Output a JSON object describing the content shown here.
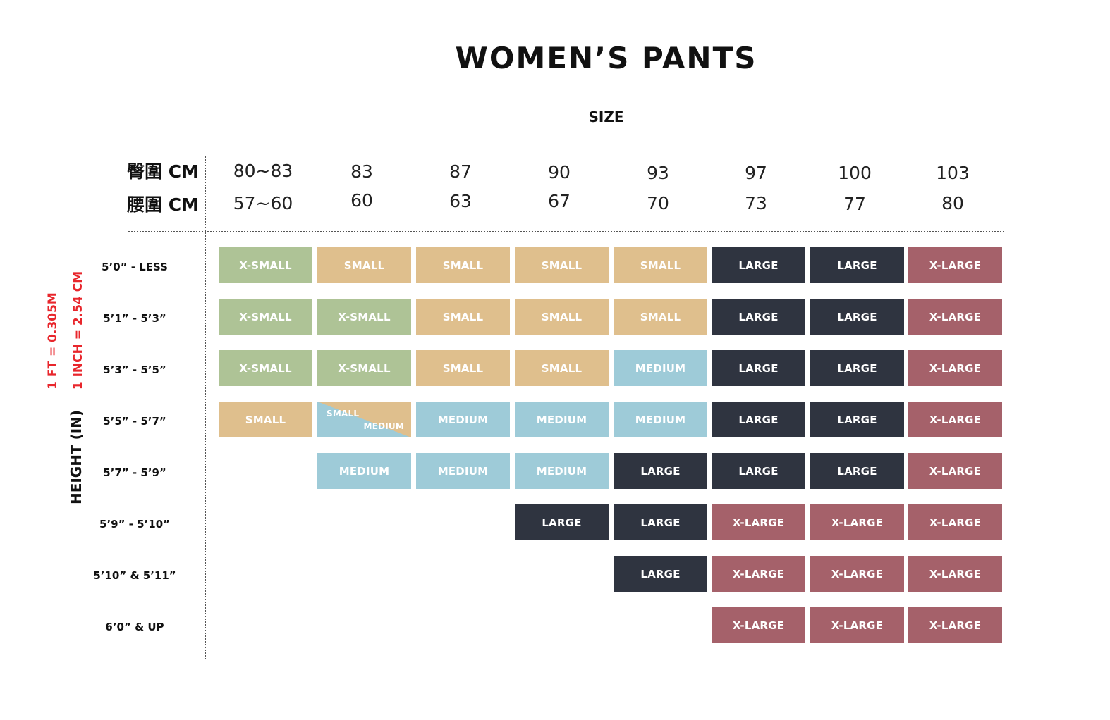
{
  "title": "WOMEN’S PANTS",
  "subtitle": "SIZE",
  "hip_label": "臀圍 CM",
  "waist_label": "腰圍 CM",
  "hip_values": [
    "80~83",
    "83",
    "87",
    "90",
    "93",
    "97",
    "100",
    "103"
  ],
  "waist_values": [
    "57~60",
    "60",
    "63",
    "67",
    "70",
    "73",
    "77",
    "80"
  ],
  "axis_label": "HEIGHT (IN)",
  "conversion_ft": "1 FT = 0.305M",
  "conversion_inch": "1 INCH = 2.54 CM",
  "colors": {
    "X-SMALL": "#aec396",
    "SMALL": "#dfbf8d",
    "MEDIUM": "#9ecbd8",
    "LARGE": "#2f3440",
    "X-LARGE": "#a5616a",
    "conversion_text": "#e8262c"
  },
  "rows": [
    {
      "height": "5’0” - LESS",
      "cells": [
        "X-SMALL",
        "SMALL",
        "SMALL",
        "SMALL",
        "SMALL",
        "LARGE",
        "LARGE",
        "X-LARGE"
      ]
    },
    {
      "height": "5’1” - 5’3”",
      "cells": [
        "X-SMALL",
        "X-SMALL",
        "SMALL",
        "SMALL",
        "SMALL",
        "LARGE",
        "LARGE",
        "X-LARGE"
      ]
    },
    {
      "height": "5’3” - 5’5”",
      "cells": [
        "X-SMALL",
        "X-SMALL",
        "SMALL",
        "SMALL",
        "MEDIUM",
        "LARGE",
        "LARGE",
        "X-LARGE"
      ]
    },
    {
      "height": "5’5” - 5’7”",
      "cells": [
        "SMALL",
        "SMALL/MEDIUM",
        "MEDIUM",
        "MEDIUM",
        "MEDIUM",
        "LARGE",
        "LARGE",
        "X-LARGE"
      ]
    },
    {
      "height": "5’7” - 5’9”",
      "cells": [
        "",
        "MEDIUM",
        "MEDIUM",
        "MEDIUM",
        "LARGE",
        "LARGE",
        "LARGE",
        "X-LARGE"
      ]
    },
    {
      "height": "5’9” - 5’10”",
      "cells": [
        "",
        "",
        "",
        "LARGE",
        "LARGE",
        "X-LARGE",
        "X-LARGE",
        "X-LARGE"
      ]
    },
    {
      "height": "5’10” & 5’11”",
      "cells": [
        "",
        "",
        "",
        "",
        "LARGE",
        "X-LARGE",
        "X-LARGE",
        "X-LARGE"
      ]
    },
    {
      "height": "6’0” & UP",
      "cells": [
        "",
        "",
        "",
        "",
        "",
        "X-LARGE",
        "X-LARGE",
        "X-LARGE"
      ]
    }
  ],
  "split_cell": {
    "top": "SMALL",
    "bottom": "MEDIUM"
  }
}
